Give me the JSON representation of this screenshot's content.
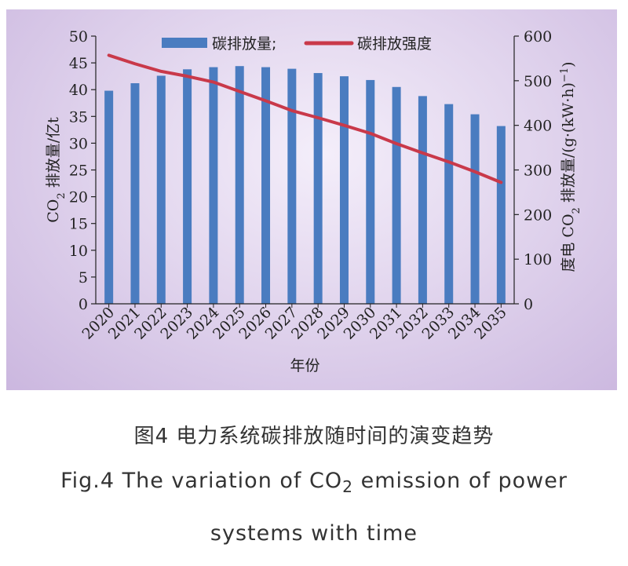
{
  "chart_data": {
    "type": "bar+line",
    "categories": [
      "2020",
      "2021",
      "2022",
      "2023",
      "2024",
      "2025",
      "2026",
      "2027",
      "2028",
      "2029",
      "2030",
      "2031",
      "2032",
      "2033",
      "2034",
      "2035"
    ],
    "series": [
      {
        "name": "碳排放量;",
        "type": "bar",
        "axis": "left",
        "color": "#4a7cc0",
        "values": [
          39.8,
          41.2,
          42.6,
          43.8,
          44.2,
          44.4,
          44.2,
          43.9,
          43.1,
          42.5,
          41.8,
          40.5,
          38.8,
          37.3,
          35.4,
          33.2
        ]
      },
      {
        "name": "碳排放强度",
        "type": "line",
        "axis": "right",
        "color": "#c9394a",
        "values": [
          557,
          538,
          521,
          510,
          497,
          476,
          455,
          433,
          417,
          400,
          382,
          359,
          338,
          318,
          296,
          272
        ]
      }
    ],
    "xlabel": "年份",
    "ylabel_left": [
      "CO",
      "2",
      " 排放量/亿t"
    ],
    "ylabel_right": [
      "度电 CO",
      "2",
      " 排放量/(g·(kW·h)",
      "−1",
      ")"
    ],
    "ylim_left": [
      0,
      50
    ],
    "yticks_left": [
      0,
      5,
      10,
      15,
      20,
      25,
      30,
      35,
      40,
      45,
      50
    ],
    "ylim_right": [
      0,
      600
    ],
    "yticks_right": [
      0,
      100,
      200,
      300,
      400,
      500,
      600
    ],
    "legend_position": "top-center",
    "grid": false
  },
  "caption": {
    "cn": "图4 电力系统碳排放随时间的演变趋势",
    "en_line1_pre": "Fig.4 The variation of CO",
    "en_line1_sub": "2",
    "en_line1_post": " emission of power",
    "en_line2": "systems with time"
  }
}
